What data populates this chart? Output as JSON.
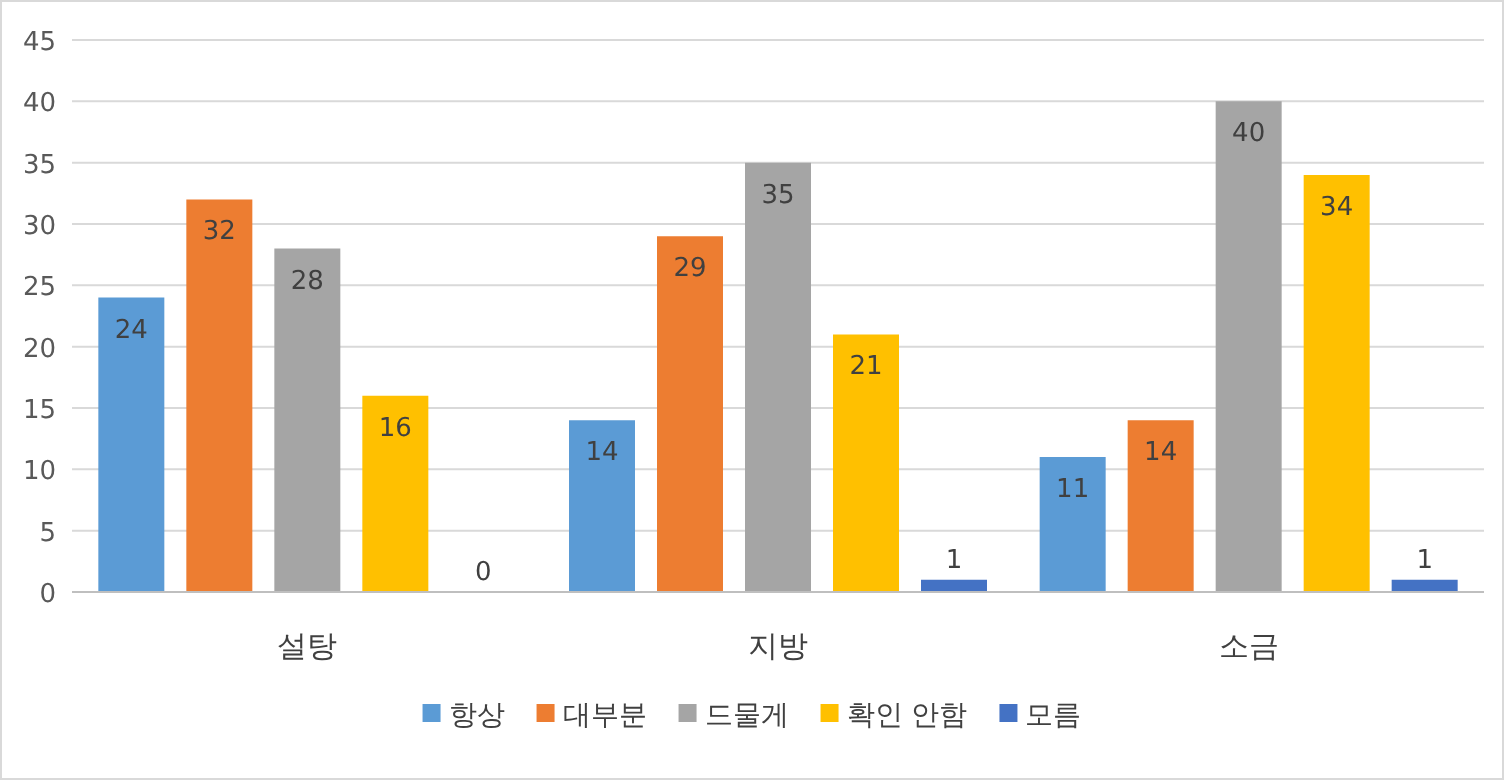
{
  "chart_data": {
    "type": "bar",
    "categories": [
      "설탕",
      "지방",
      "소금"
    ],
    "series": [
      {
        "name": "항상",
        "color": "#5b9bd5",
        "values": [
          24,
          14,
          11
        ]
      },
      {
        "name": "대부분",
        "color": "#ed7d31",
        "values": [
          32,
          29,
          14
        ]
      },
      {
        "name": "드물게",
        "color": "#a5a5a5",
        "values": [
          28,
          35,
          40
        ]
      },
      {
        "name": "확인 안함",
        "color": "#ffc000",
        "values": [
          16,
          21,
          34
        ]
      },
      {
        "name": "모름",
        "color": "#4472c4",
        "values": [
          0,
          1,
          1
        ]
      }
    ],
    "ylim": [
      0,
      45
    ],
    "yticks": [
      0,
      5,
      10,
      15,
      20,
      25,
      30,
      35,
      40,
      45
    ],
    "grid": "y",
    "legend": "bottom",
    "data_labels": true
  }
}
